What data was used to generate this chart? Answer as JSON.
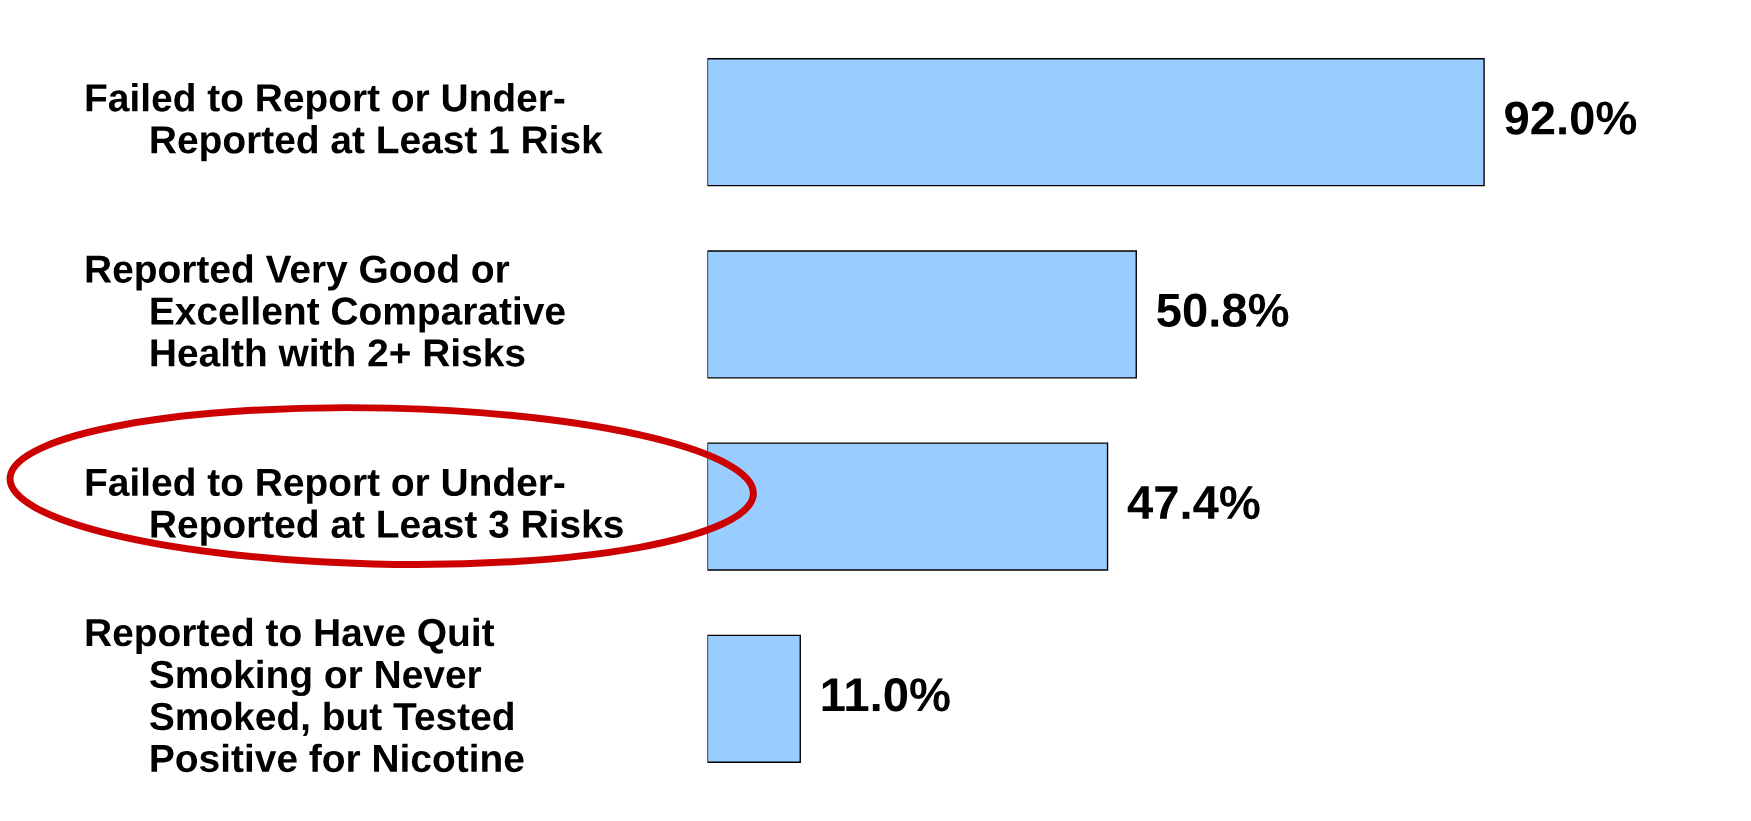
{
  "chart_data": {
    "type": "bar",
    "orientation": "horizontal",
    "categories": [
      "Failed to Report or Under-\n      Reported at Least 1 Risk",
      "Reported Very Good or\n      Excellent Comparative\n      Health with 2+ Risks",
      "Failed to Report or Under-\n      Reported at Least 3 Risks",
      "Reported to Have Quit\n      Smoking or Never\n      Smoked, but Tested\n      Positive for Nicotine"
    ],
    "values": [
      92.0,
      50.8,
      47.4,
      11.0
    ],
    "value_labels": [
      "92.0%",
      "50.8%",
      "47.4%",
      "11.0%"
    ],
    "color": "#99ccff"
  }
}
